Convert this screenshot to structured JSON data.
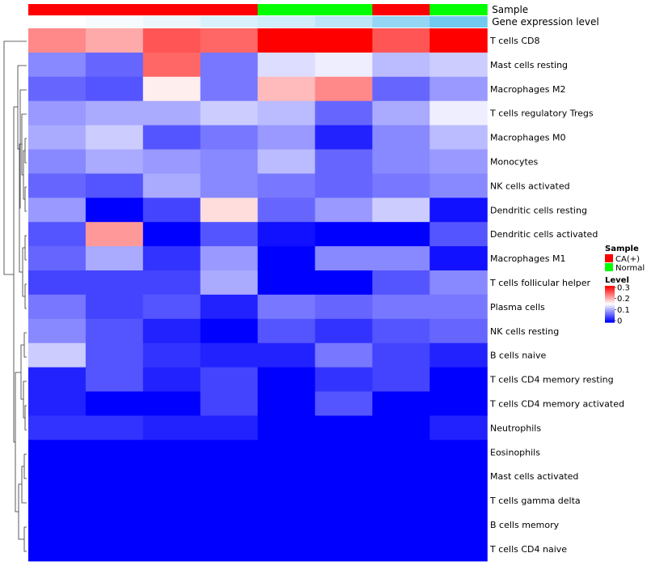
{
  "chart_data": {
    "type": "heatmap",
    "top_annotations": [
      {
        "label": "Sample",
        "values": [
          "CA(+)",
          "CA(+)",
          "CA(+)",
          "CA(+)",
          "Normal",
          "Normal",
          "CA(+)",
          "Normal"
        ]
      },
      {
        "label": "Gene expression level",
        "values": [
          0.0,
          0.06,
          0.14,
          0.26,
          0.33,
          0.46,
          0.74,
          0.98
        ]
      }
    ],
    "rows": [
      "T cells CD8",
      "Mast cells resting",
      "Macrophages M2",
      "T cells regulatory  Tregs",
      "Macrophages M0",
      "Monocytes",
      "NK cells activated",
      "Dendritic cells resting",
      "Dendritic cells activated",
      "Macrophages M1",
      "T cells follicular helper",
      "Plasma cells",
      "NK cells resting",
      "B cells naive",
      "T cells CD4 memory resting",
      "T cells CD4 memory activated",
      "Neutrophils",
      "Eosinophils",
      "Mast cells activated",
      "T cells gamma delta",
      "B cells memory",
      "T cells CD4 naive"
    ],
    "values": [
      [
        0.22,
        0.2,
        0.25,
        0.24,
        0.3,
        0.3,
        0.25,
        0.3
      ],
      [
        0.08,
        0.06,
        0.24,
        0.07,
        0.13,
        0.14,
        0.11,
        0.12
      ],
      [
        0.06,
        0.05,
        0.16,
        0.07,
        0.19,
        0.22,
        0.06,
        0.09
      ],
      [
        0.09,
        0.1,
        0.1,
        0.12,
        0.11,
        0.06,
        0.1,
        0.14
      ],
      [
        0.1,
        0.12,
        0.05,
        0.07,
        0.09,
        0.02,
        0.08,
        0.11
      ],
      [
        0.08,
        0.1,
        0.09,
        0.08,
        0.11,
        0.06,
        0.08,
        0.09
      ],
      [
        0.06,
        0.05,
        0.1,
        0.08,
        0.07,
        0.06,
        0.07,
        0.08
      ],
      [
        0.09,
        0.0,
        0.04,
        0.17,
        0.06,
        0.09,
        0.12,
        0.01
      ],
      [
        0.05,
        0.21,
        0.0,
        0.05,
        0.01,
        0.0,
        0.0,
        0.05
      ],
      [
        0.06,
        0.1,
        0.03,
        0.09,
        0.0,
        0.08,
        0.08,
        0.01
      ],
      [
        0.04,
        0.04,
        0.04,
        0.1,
        0.0,
        0.0,
        0.05,
        0.08
      ],
      [
        0.07,
        0.04,
        0.05,
        0.02,
        0.07,
        0.06,
        0.07,
        0.07
      ],
      [
        0.08,
        0.05,
        0.02,
        0.0,
        0.05,
        0.03,
        0.05,
        0.06
      ],
      [
        0.12,
        0.05,
        0.03,
        0.02,
        0.02,
        0.07,
        0.04,
        0.02
      ],
      [
        0.02,
        0.05,
        0.02,
        0.04,
        0.0,
        0.03,
        0.04,
        0.0
      ],
      [
        0.02,
        0.0,
        0.0,
        0.04,
        0.0,
        0.05,
        0.0,
        0.0
      ],
      [
        0.03,
        0.03,
        0.02,
        0.02,
        0.0,
        0.0,
        0.0,
        0.02
      ],
      [
        0.0,
        0.0,
        0.0,
        0.0,
        0.0,
        0.0,
        0.0,
        0.0
      ],
      [
        0.0,
        0.0,
        0.0,
        0.0,
        0.0,
        0.0,
        0.0,
        0.0
      ],
      [
        0.0,
        0.0,
        0.0,
        0.0,
        0.0,
        0.0,
        0.0,
        0.0
      ],
      [
        0.0,
        0.0,
        0.0,
        0.0,
        0.0,
        0.0,
        0.0,
        0.0
      ],
      [
        0.0,
        0.0,
        0.0,
        0.0,
        0.0,
        0.0,
        0.0,
        0.0
      ]
    ],
    "color_scale": {
      "min": 0,
      "mid": 0.15,
      "max": 0.3,
      "low": "#0000ff",
      "mid_color": "#ffffff",
      "high": "#ff0000"
    },
    "expression_scale": {
      "low": "#ffffff",
      "high": "#6ec8f0"
    },
    "legend": {
      "sample_title": "Sample",
      "sample_items": [
        {
          "label": "CA(+)",
          "color": "#ff0000"
        },
        {
          "label": "Normal",
          "color": "#00ff00"
        }
      ],
      "level_title": "Level",
      "level_ticks": [
        "0.3",
        "0.2",
        "0.1",
        "0"
      ],
      "position": "right"
    },
    "row_dendrogram": "left",
    "grid": false
  }
}
